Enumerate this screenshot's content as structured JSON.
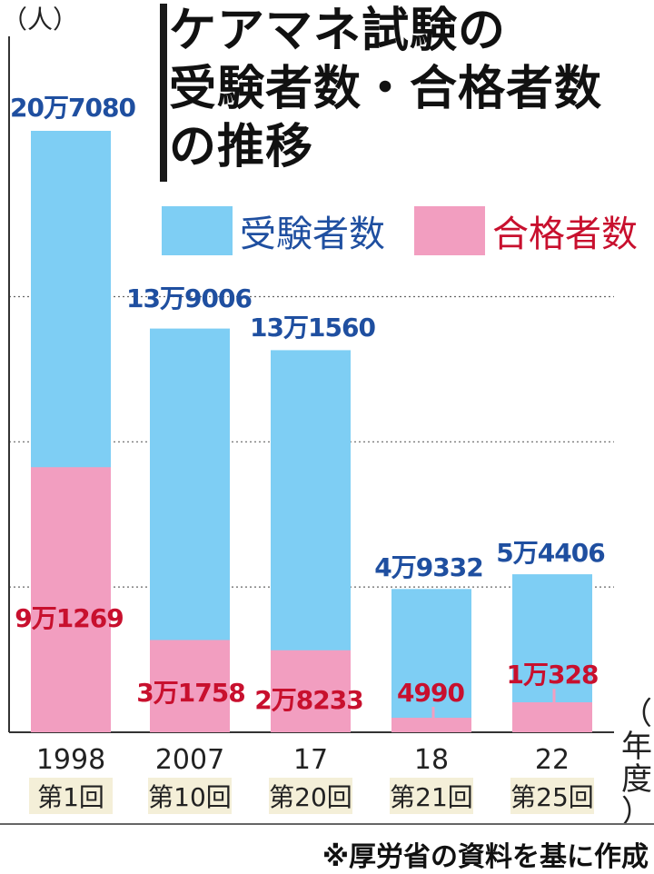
{
  "title": {
    "lines": [
      "ケアマネ試験の",
      "受験者数・合格者数",
      "の推移"
    ]
  },
  "colors": {
    "examinees": "#7ecef4",
    "passers": "#f29ec0",
    "examinees_label": "#1f4fa0",
    "passers_label": "#c8102e"
  },
  "chart_data": {
    "type": "bar",
    "title": "ケアマネ試験の受験者数・合格者数の推移",
    "y_unit": "（人）",
    "x_unit": "（年度）",
    "ylim": [
      0,
      220000
    ],
    "grid": true,
    "legend_position": "top-right",
    "categories": [
      {
        "year": "1998",
        "round": "第1回"
      },
      {
        "year": "2007",
        "round": "第10回"
      },
      {
        "year": "17",
        "round": "第20回"
      },
      {
        "year": "18",
        "round": "第21回"
      },
      {
        "year": "22",
        "round": "第25回"
      }
    ],
    "series": [
      {
        "name": "受験者数",
        "values": [
          207080,
          139006,
          131560,
          49332,
          54406
        ],
        "labels": [
          "20万7080",
          "13万9006",
          "13万1560",
          "4万9332",
          "5万4406"
        ]
      },
      {
        "name": "合格者数",
        "values": [
          91269,
          31758,
          28233,
          4990,
          10328
        ],
        "labels": [
          "9万1269",
          "3万1758",
          "2万8233",
          "4990",
          "1万328"
        ]
      }
    ]
  },
  "source": "※厚労省の資料を基に作成"
}
